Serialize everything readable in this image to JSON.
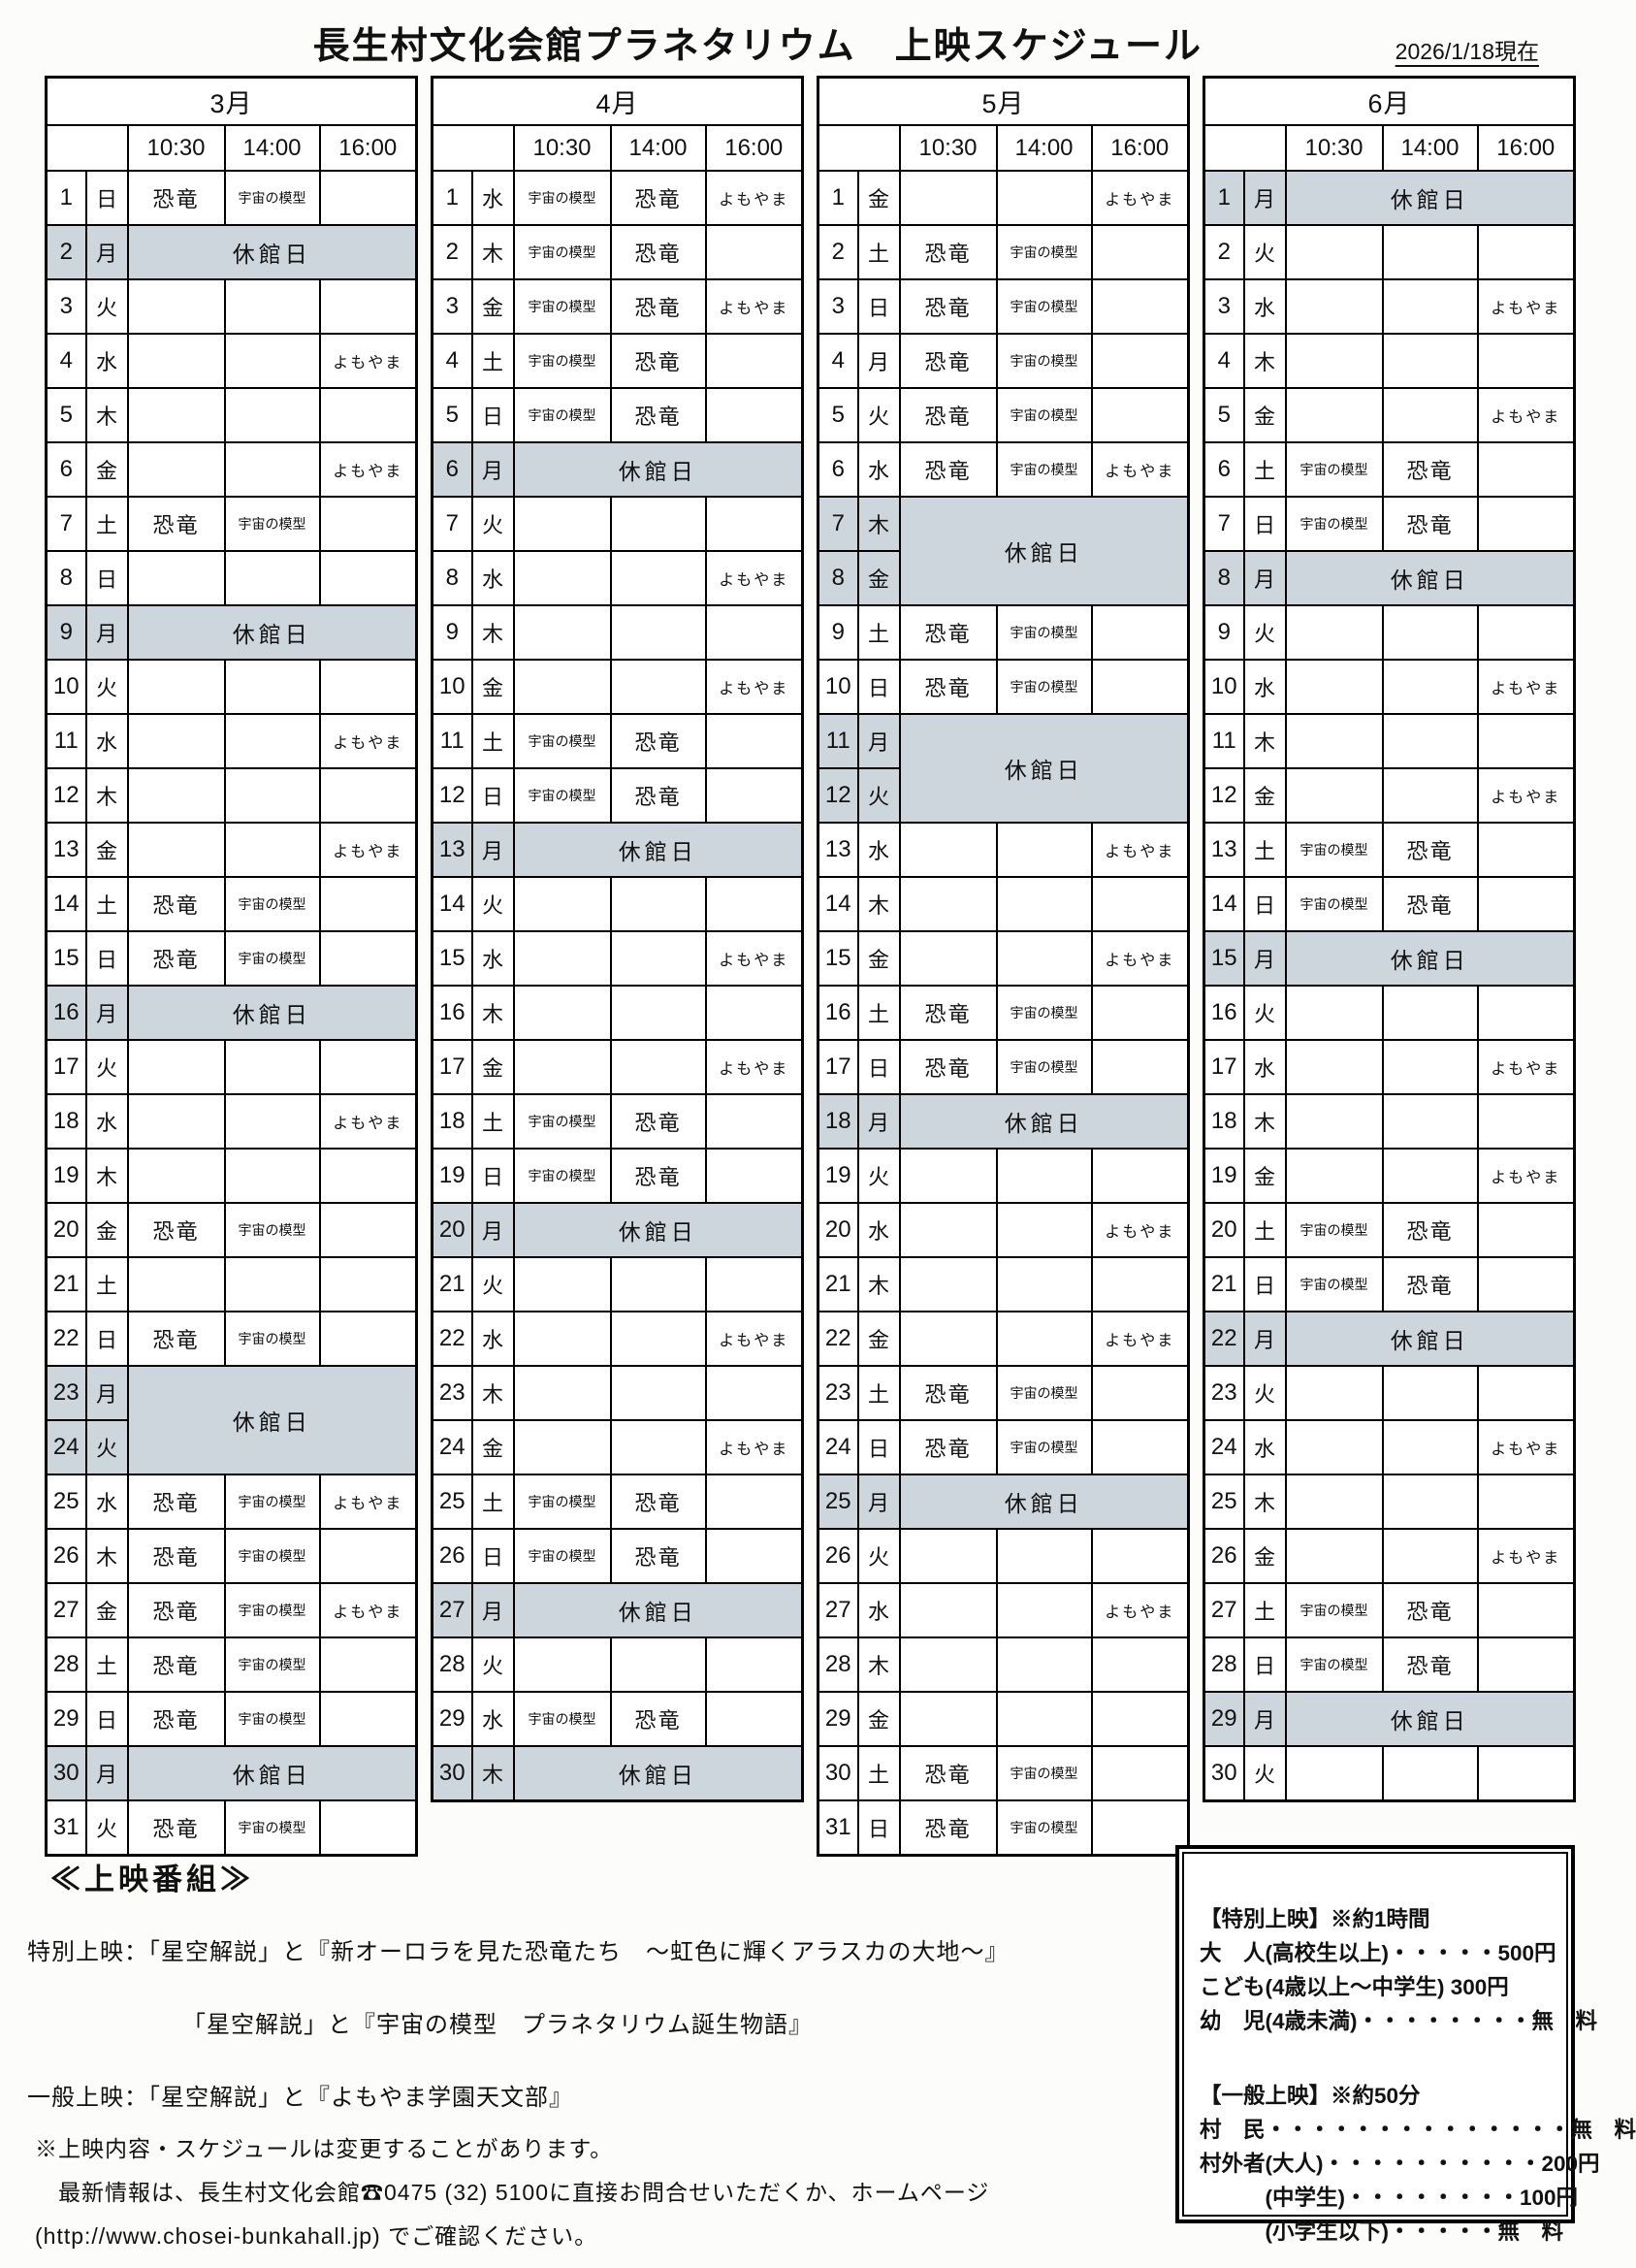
{
  "title": "長生村文化会館プラネタリウム　上映スケジュール",
  "as_of": "2026/1/18現在",
  "times": [
    "10:30",
    "14:00",
    "16:00"
  ],
  "time_keys": [
    "1030",
    "1400",
    "1600"
  ],
  "closed_label": "休館日",
  "colors": {
    "closed_bg": "#ced6dd",
    "border": "#000000"
  },
  "months": [
    {
      "label": "3月",
      "days": [
        {
          "d": 1,
          "w": "日",
          "s": [
            "恐竜",
            "宇宙の模型",
            ""
          ]
        },
        {
          "d": 2,
          "w": "月",
          "c": 1
        },
        {
          "d": 3,
          "w": "火",
          "s": [
            "",
            "",
            ""
          ]
        },
        {
          "d": 4,
          "w": "水",
          "s": [
            "",
            "",
            "よもやま"
          ]
        },
        {
          "d": 5,
          "w": "木",
          "s": [
            "",
            "",
            ""
          ]
        },
        {
          "d": 6,
          "w": "金",
          "s": [
            "",
            "",
            "よもやま"
          ]
        },
        {
          "d": 7,
          "w": "土",
          "s": [
            "恐竜",
            "宇宙の模型",
            ""
          ]
        },
        {
          "d": 8,
          "w": "日",
          "s": [
            "",
            "",
            ""
          ]
        },
        {
          "d": 9,
          "w": "月",
          "c": 1
        },
        {
          "d": 10,
          "w": "火",
          "s": [
            "",
            "",
            ""
          ]
        },
        {
          "d": 11,
          "w": "水",
          "s": [
            "",
            "",
            "よもやま"
          ]
        },
        {
          "d": 12,
          "w": "木",
          "s": [
            "",
            "",
            ""
          ]
        },
        {
          "d": 13,
          "w": "金",
          "s": [
            "",
            "",
            "よもやま"
          ]
        },
        {
          "d": 14,
          "w": "土",
          "s": [
            "恐竜",
            "宇宙の模型",
            ""
          ]
        },
        {
          "d": 15,
          "w": "日",
          "s": [
            "恐竜",
            "宇宙の模型",
            ""
          ]
        },
        {
          "d": 16,
          "w": "月",
          "c": 1
        },
        {
          "d": 17,
          "w": "火",
          "s": [
            "",
            "",
            ""
          ]
        },
        {
          "d": 18,
          "w": "水",
          "s": [
            "",
            "",
            "よもやま"
          ]
        },
        {
          "d": 19,
          "w": "木",
          "s": [
            "",
            "",
            ""
          ]
        },
        {
          "d": 20,
          "w": "金",
          "s": [
            "恐竜",
            "宇宙の模型",
            ""
          ]
        },
        {
          "d": 21,
          "w": "土",
          "s": [
            "",
            "",
            ""
          ]
        },
        {
          "d": 22,
          "w": "日",
          "s": [
            "恐竜",
            "宇宙の模型",
            ""
          ]
        },
        {
          "d": 23,
          "w": "月",
          "c": 2
        },
        {
          "d": 24,
          "w": "火",
          "c": 0
        },
        {
          "d": 25,
          "w": "水",
          "s": [
            "恐竜",
            "宇宙の模型",
            "よもやま"
          ]
        },
        {
          "d": 26,
          "w": "木",
          "s": [
            "恐竜",
            "宇宙の模型",
            ""
          ]
        },
        {
          "d": 27,
          "w": "金",
          "s": [
            "恐竜",
            "宇宙の模型",
            "よもやま"
          ]
        },
        {
          "d": 28,
          "w": "土",
          "s": [
            "恐竜",
            "宇宙の模型",
            ""
          ]
        },
        {
          "d": 29,
          "w": "日",
          "s": [
            "恐竜",
            "宇宙の模型",
            ""
          ]
        },
        {
          "d": 30,
          "w": "月",
          "c": 1
        },
        {
          "d": 31,
          "w": "火",
          "s": [
            "恐竜",
            "宇宙の模型",
            ""
          ]
        }
      ]
    },
    {
      "label": "4月",
      "days": [
        {
          "d": 1,
          "w": "水",
          "s": [
            "宇宙の模型",
            "恐竜",
            "よもやま"
          ]
        },
        {
          "d": 2,
          "w": "木",
          "s": [
            "宇宙の模型",
            "恐竜",
            ""
          ]
        },
        {
          "d": 3,
          "w": "金",
          "s": [
            "宇宙の模型",
            "恐竜",
            "よもやま"
          ]
        },
        {
          "d": 4,
          "w": "土",
          "s": [
            "宇宙の模型",
            "恐竜",
            ""
          ]
        },
        {
          "d": 5,
          "w": "日",
          "s": [
            "宇宙の模型",
            "恐竜",
            ""
          ]
        },
        {
          "d": 6,
          "w": "月",
          "c": 1
        },
        {
          "d": 7,
          "w": "火",
          "s": [
            "",
            "",
            ""
          ]
        },
        {
          "d": 8,
          "w": "水",
          "s": [
            "",
            "",
            "よもやま"
          ]
        },
        {
          "d": 9,
          "w": "木",
          "s": [
            "",
            "",
            ""
          ]
        },
        {
          "d": 10,
          "w": "金",
          "s": [
            "",
            "",
            "よもやま"
          ]
        },
        {
          "d": 11,
          "w": "土",
          "s": [
            "宇宙の模型",
            "恐竜",
            ""
          ]
        },
        {
          "d": 12,
          "w": "日",
          "s": [
            "宇宙の模型",
            "恐竜",
            ""
          ]
        },
        {
          "d": 13,
          "w": "月",
          "c": 1
        },
        {
          "d": 14,
          "w": "火",
          "s": [
            "",
            "",
            ""
          ]
        },
        {
          "d": 15,
          "w": "水",
          "s": [
            "",
            "",
            "よもやま"
          ]
        },
        {
          "d": 16,
          "w": "木",
          "s": [
            "",
            "",
            ""
          ]
        },
        {
          "d": 17,
          "w": "金",
          "s": [
            "",
            "",
            "よもやま"
          ]
        },
        {
          "d": 18,
          "w": "土",
          "s": [
            "宇宙の模型",
            "恐竜",
            ""
          ]
        },
        {
          "d": 19,
          "w": "日",
          "s": [
            "宇宙の模型",
            "恐竜",
            ""
          ]
        },
        {
          "d": 20,
          "w": "月",
          "c": 1
        },
        {
          "d": 21,
          "w": "火",
          "s": [
            "",
            "",
            ""
          ]
        },
        {
          "d": 22,
          "w": "水",
          "s": [
            "",
            "",
            "よもやま"
          ]
        },
        {
          "d": 23,
          "w": "木",
          "s": [
            "",
            "",
            ""
          ]
        },
        {
          "d": 24,
          "w": "金",
          "s": [
            "",
            "",
            "よもやま"
          ]
        },
        {
          "d": 25,
          "w": "土",
          "s": [
            "宇宙の模型",
            "恐竜",
            ""
          ]
        },
        {
          "d": 26,
          "w": "日",
          "s": [
            "宇宙の模型",
            "恐竜",
            ""
          ]
        },
        {
          "d": 27,
          "w": "月",
          "c": 1
        },
        {
          "d": 28,
          "w": "火",
          "s": [
            "",
            "",
            ""
          ]
        },
        {
          "d": 29,
          "w": "水",
          "s": [
            "宇宙の模型",
            "恐竜",
            ""
          ]
        },
        {
          "d": 30,
          "w": "木",
          "c": 1
        }
      ]
    },
    {
      "label": "5月",
      "days": [
        {
          "d": 1,
          "w": "金",
          "s": [
            "",
            "",
            "よもやま"
          ]
        },
        {
          "d": 2,
          "w": "土",
          "s": [
            "恐竜",
            "宇宙の模型",
            ""
          ]
        },
        {
          "d": 3,
          "w": "日",
          "s": [
            "恐竜",
            "宇宙の模型",
            ""
          ]
        },
        {
          "d": 4,
          "w": "月",
          "s": [
            "恐竜",
            "宇宙の模型",
            ""
          ]
        },
        {
          "d": 5,
          "w": "火",
          "s": [
            "恐竜",
            "宇宙の模型",
            ""
          ]
        },
        {
          "d": 6,
          "w": "水",
          "s": [
            "恐竜",
            "宇宙の模型",
            "よもやま"
          ]
        },
        {
          "d": 7,
          "w": "木",
          "c": 2
        },
        {
          "d": 8,
          "w": "金",
          "c": 0
        },
        {
          "d": 9,
          "w": "土",
          "s": [
            "恐竜",
            "宇宙の模型",
            ""
          ]
        },
        {
          "d": 10,
          "w": "日",
          "s": [
            "恐竜",
            "宇宙の模型",
            ""
          ]
        },
        {
          "d": 11,
          "w": "月",
          "c": 2
        },
        {
          "d": 12,
          "w": "火",
          "c": 0
        },
        {
          "d": 13,
          "w": "水",
          "s": [
            "",
            "",
            "よもやま"
          ]
        },
        {
          "d": 14,
          "w": "木",
          "s": [
            "",
            "",
            ""
          ]
        },
        {
          "d": 15,
          "w": "金",
          "s": [
            "",
            "",
            "よもやま"
          ]
        },
        {
          "d": 16,
          "w": "土",
          "s": [
            "恐竜",
            "宇宙の模型",
            ""
          ]
        },
        {
          "d": 17,
          "w": "日",
          "s": [
            "恐竜",
            "宇宙の模型",
            ""
          ]
        },
        {
          "d": 18,
          "w": "月",
          "c": 1
        },
        {
          "d": 19,
          "w": "火",
          "s": [
            "",
            "",
            ""
          ]
        },
        {
          "d": 20,
          "w": "水",
          "s": [
            "",
            "",
            "よもやま"
          ]
        },
        {
          "d": 21,
          "w": "木",
          "s": [
            "",
            "",
            ""
          ]
        },
        {
          "d": 22,
          "w": "金",
          "s": [
            "",
            "",
            "よもやま"
          ]
        },
        {
          "d": 23,
          "w": "土",
          "s": [
            "恐竜",
            "宇宙の模型",
            ""
          ]
        },
        {
          "d": 24,
          "w": "日",
          "s": [
            "恐竜",
            "宇宙の模型",
            ""
          ]
        },
        {
          "d": 25,
          "w": "月",
          "c": 1
        },
        {
          "d": 26,
          "w": "火",
          "s": [
            "",
            "",
            ""
          ]
        },
        {
          "d": 27,
          "w": "水",
          "s": [
            "",
            "",
            "よもやま"
          ]
        },
        {
          "d": 28,
          "w": "木",
          "s": [
            "",
            "",
            ""
          ]
        },
        {
          "d": 29,
          "w": "金",
          "s": [
            "",
            "",
            ""
          ]
        },
        {
          "d": 30,
          "w": "土",
          "s": [
            "恐竜",
            "宇宙の模型",
            ""
          ]
        },
        {
          "d": 31,
          "w": "日",
          "s": [
            "恐竜",
            "宇宙の模型",
            ""
          ]
        }
      ]
    },
    {
      "label": "6月",
      "days": [
        {
          "d": 1,
          "w": "月",
          "c": 1
        },
        {
          "d": 2,
          "w": "火",
          "s": [
            "",
            "",
            ""
          ]
        },
        {
          "d": 3,
          "w": "水",
          "s": [
            "",
            "",
            "よもやま"
          ]
        },
        {
          "d": 4,
          "w": "木",
          "s": [
            "",
            "",
            ""
          ]
        },
        {
          "d": 5,
          "w": "金",
          "s": [
            "",
            "",
            "よもやま"
          ]
        },
        {
          "d": 6,
          "w": "土",
          "s": [
            "宇宙の模型",
            "恐竜",
            ""
          ]
        },
        {
          "d": 7,
          "w": "日",
          "s": [
            "宇宙の模型",
            "恐竜",
            ""
          ]
        },
        {
          "d": 8,
          "w": "月",
          "c": 1
        },
        {
          "d": 9,
          "w": "火",
          "s": [
            "",
            "",
            ""
          ]
        },
        {
          "d": 10,
          "w": "水",
          "s": [
            "",
            "",
            "よもやま"
          ]
        },
        {
          "d": 11,
          "w": "木",
          "s": [
            "",
            "",
            ""
          ]
        },
        {
          "d": 12,
          "w": "金",
          "s": [
            "",
            "",
            "よもやま"
          ]
        },
        {
          "d": 13,
          "w": "土",
          "s": [
            "宇宙の模型",
            "恐竜",
            ""
          ]
        },
        {
          "d": 14,
          "w": "日",
          "s": [
            "宇宙の模型",
            "恐竜",
            ""
          ]
        },
        {
          "d": 15,
          "w": "月",
          "c": 1
        },
        {
          "d": 16,
          "w": "火",
          "s": [
            "",
            "",
            ""
          ]
        },
        {
          "d": 17,
          "w": "水",
          "s": [
            "",
            "",
            "よもやま"
          ]
        },
        {
          "d": 18,
          "w": "木",
          "s": [
            "",
            "",
            ""
          ]
        },
        {
          "d": 19,
          "w": "金",
          "s": [
            "",
            "",
            "よもやま"
          ]
        },
        {
          "d": 20,
          "w": "土",
          "s": [
            "宇宙の模型",
            "恐竜",
            ""
          ]
        },
        {
          "d": 21,
          "w": "日",
          "s": [
            "宇宙の模型",
            "恐竜",
            ""
          ]
        },
        {
          "d": 22,
          "w": "月",
          "c": 1
        },
        {
          "d": 23,
          "w": "火",
          "s": [
            "",
            "",
            ""
          ]
        },
        {
          "d": 24,
          "w": "水",
          "s": [
            "",
            "",
            "よもやま"
          ]
        },
        {
          "d": 25,
          "w": "木",
          "s": [
            "",
            "",
            ""
          ]
        },
        {
          "d": 26,
          "w": "金",
          "s": [
            "",
            "",
            "よもやま"
          ]
        },
        {
          "d": 27,
          "w": "土",
          "s": [
            "宇宙の模型",
            "恐竜",
            ""
          ]
        },
        {
          "d": 28,
          "w": "日",
          "s": [
            "宇宙の模型",
            "恐竜",
            ""
          ]
        },
        {
          "d": 29,
          "w": "月",
          "c": 1
        },
        {
          "d": 30,
          "w": "火",
          "s": [
            "",
            "",
            ""
          ]
        }
      ]
    }
  ],
  "programs": {
    "heading": "≪上映番組≫",
    "lines": [
      {
        "text": "特別上映：「星空解説」と『新オーロラを見た恐竜たち　～虹色に輝くアラスカの大地～』",
        "indent": false
      },
      {
        "text": "「星空解説」と『宇宙の模型　プラネタリウム誕生物語』",
        "indent": true
      },
      {
        "text": "一般上映：「星空解説」と『よもやま学園天文部』",
        "indent": false
      }
    ]
  },
  "notes": [
    "※上映内容・スケジュールは変更することがあります。",
    "　最新情報は、長生村文化会館☎0475 (32) 5100に直接お問合せいただくか、ホームページ",
    "(http://www.chosei-bunkahall.jp) でご確認ください。"
  ],
  "price_box": {
    "sections": [
      {
        "heading": "【特別上映】※約1時間",
        "rows": [
          "大　人(高校生以上)・・・・・500円",
          "こども(4歳以上～中学生) 300円",
          "幼　児(4歳未満)・・・・・・・・無　料"
        ]
      },
      {
        "heading": "【一般上映】※約50分",
        "rows": [
          "村　民・・・・・・・・・・・・・・無　料",
          "村外者(大人)・・・・・・・・・・200円",
          "　　　(中学生)・・・・・・・・100円",
          "　　　(小学生以下)・・・・・無　料"
        ]
      }
    ]
  }
}
